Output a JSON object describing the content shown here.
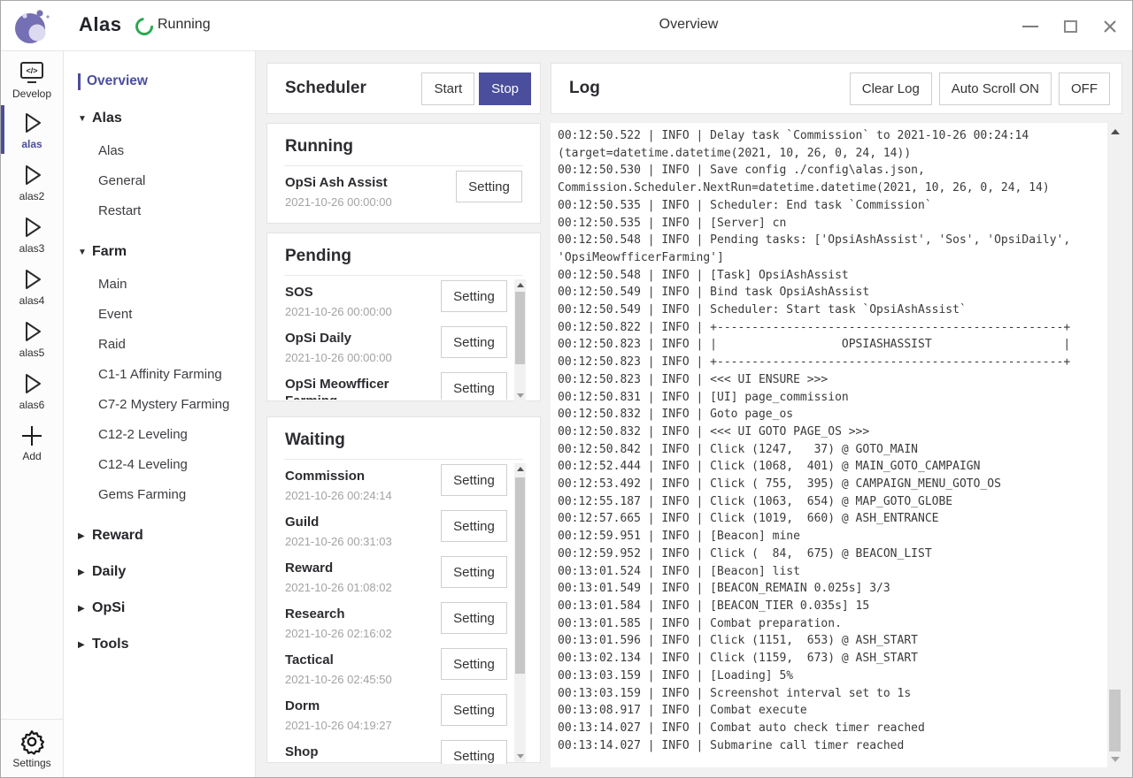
{
  "colors": {
    "accent": "#4b4e9c",
    "logo_purple": "#756fb3",
    "logo_light": "#dcdaf0",
    "running_green": "#2aa952"
  },
  "window": {
    "app_title": "Alas",
    "status": "Running",
    "title": "Overview"
  },
  "rail": {
    "develop_label": "Develop",
    "instances": [
      "alas",
      "alas2",
      "alas3",
      "alas4",
      "alas5",
      "alas6"
    ],
    "active_instance": "alas",
    "add_label": "Add",
    "settings_label": "Settings"
  },
  "nav": {
    "overview_label": "Overview",
    "groups": [
      {
        "label": "Alas",
        "expanded": true,
        "items": [
          "Alas",
          "General",
          "Restart"
        ]
      },
      {
        "label": "Farm",
        "expanded": true,
        "items": [
          "Main",
          "Event",
          "Raid",
          "C1-1 Affinity Farming",
          "C7-2 Mystery Farming",
          "C12-2 Leveling",
          "C12-4 Leveling",
          "Gems Farming"
        ]
      },
      {
        "label": "Reward",
        "expanded": false,
        "items": []
      },
      {
        "label": "Daily",
        "expanded": false,
        "items": []
      },
      {
        "label": "OpSi",
        "expanded": false,
        "items": []
      },
      {
        "label": "Tools",
        "expanded": false,
        "items": []
      }
    ]
  },
  "scheduler": {
    "title": "Scheduler",
    "start_label": "Start",
    "stop_label": "Stop",
    "setting_label": "Setting",
    "running": {
      "title": "Running",
      "items": [
        {
          "name": "OpSi Ash Assist",
          "time": "2021-10-26 00:00:00"
        }
      ]
    },
    "pending": {
      "title": "Pending",
      "items": [
        {
          "name": "SOS",
          "time": "2021-10-26 00:00:00"
        },
        {
          "name": "OpSi Daily",
          "time": "2021-10-26 00:00:00"
        },
        {
          "name": "OpSi Meowfficer Farming",
          "time": ""
        }
      ]
    },
    "waiting": {
      "title": "Waiting",
      "items": [
        {
          "name": "Commission",
          "time": "2021-10-26 00:24:14"
        },
        {
          "name": "Guild",
          "time": "2021-10-26 00:31:03"
        },
        {
          "name": "Reward",
          "time": "2021-10-26 01:08:02"
        },
        {
          "name": "Research",
          "time": "2021-10-26 02:16:02"
        },
        {
          "name": "Tactical",
          "time": "2021-10-26 02:45:50"
        },
        {
          "name": "Dorm",
          "time": "2021-10-26 04:19:27"
        },
        {
          "name": "Shop",
          "time": ""
        }
      ]
    }
  },
  "log": {
    "title": "Log",
    "clear_label": "Clear Log",
    "autoscroll_on_label": "Auto Scroll ON",
    "autoscroll_off_label": "OFF",
    "lines": [
      "00:12:50.522 | INFO | Delay task `Commission` to 2021-10-26 00:24:14",
      "(target=datetime.datetime(2021, 10, 26, 0, 24, 14))",
      "00:12:50.530 | INFO | Save config ./config\\alas.json,",
      "Commission.Scheduler.NextRun=datetime.datetime(2021, 10, 26, 0, 24, 14)",
      "00:12:50.535 | INFO | Scheduler: End task `Commission`",
      "00:12:50.535 | INFO | [Server] cn",
      "00:12:50.548 | INFO | Pending tasks: ['OpsiAshAssist', 'Sos', 'OpsiDaily',",
      "'OpsiMeowfficerFarming']",
      "00:12:50.548 | INFO | [Task] OpsiAshAssist",
      "00:12:50.549 | INFO | Bind task OpsiAshAssist",
      "00:12:50.549 | INFO | Scheduler: Start task `OpsiAshAssist`",
      "00:12:50.822 | INFO | +--------------------------------------------------+",
      "00:12:50.823 | INFO | |                  OPSIASHASSIST                   |",
      "00:12:50.823 | INFO | +--------------------------------------------------+",
      "00:12:50.823 | INFO | <<< UI ENSURE >>>",
      "00:12:50.831 | INFO | [UI] page_commission",
      "00:12:50.832 | INFO | Goto page_os",
      "00:12:50.832 | INFO | <<< UI GOTO PAGE_OS >>>",
      "00:12:50.842 | INFO | Click (1247,   37) @ GOTO_MAIN",
      "00:12:52.444 | INFO | Click (1068,  401) @ MAIN_GOTO_CAMPAIGN",
      "00:12:53.492 | INFO | Click ( 755,  395) @ CAMPAIGN_MENU_GOTO_OS",
      "00:12:55.187 | INFO | Click (1063,  654) @ MAP_GOTO_GLOBE",
      "00:12:57.665 | INFO | Click (1019,  660) @ ASH_ENTRANCE",
      "00:12:59.951 | INFO | [Beacon] mine",
      "00:12:59.952 | INFO | Click (  84,  675) @ BEACON_LIST",
      "00:13:01.524 | INFO | [Beacon] list",
      "00:13:01.549 | INFO | [BEACON_REMAIN 0.025s] 3/3",
      "00:13:01.584 | INFO | [BEACON_TIER 0.035s] 15",
      "00:13:01.585 | INFO | Combat preparation.",
      "00:13:01.596 | INFO | Click (1151,  653) @ ASH_START",
      "00:13:02.134 | INFO | Click (1159,  673) @ ASH_START",
      "00:13:03.159 | INFO | [Loading] 5%",
      "00:13:03.159 | INFO | Screenshot interval set to 1s",
      "00:13:08.917 | INFO | Combat execute",
      "00:13:14.027 | INFO | Combat auto check timer reached",
      "00:13:14.027 | INFO | Submarine call timer reached"
    ]
  }
}
